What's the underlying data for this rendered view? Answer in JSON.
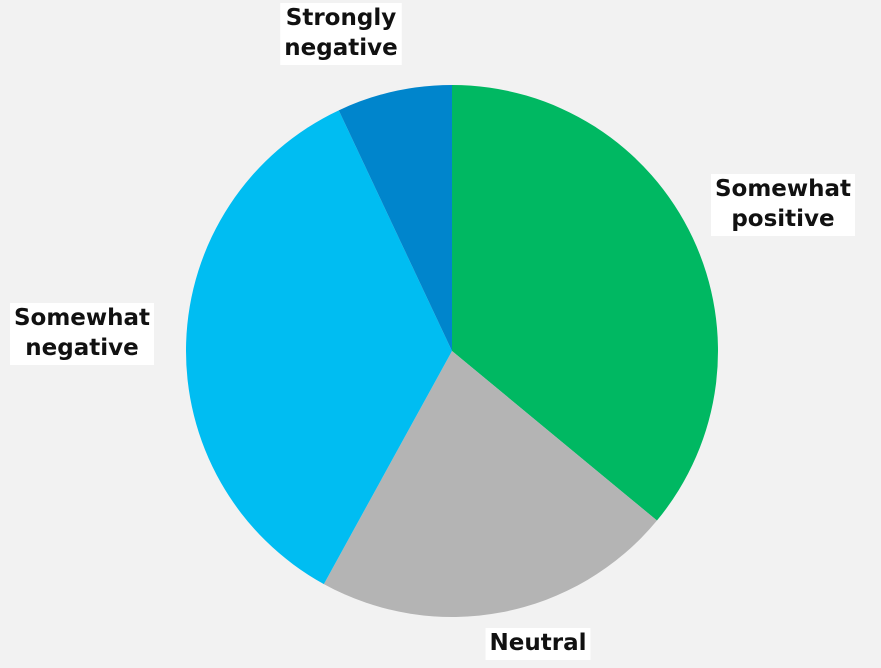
{
  "chart_data": {
    "type": "pie",
    "title": "",
    "slices": [
      {
        "label": "Somewhat positive",
        "value": 36,
        "color": "#00b862"
      },
      {
        "label": "Neutral",
        "value": 22,
        "color": "#b4b4b4"
      },
      {
        "label": "Somewhat negative",
        "value": 35,
        "color": "#00bdf2"
      },
      {
        "label": "Strongly negative",
        "value": 7,
        "color": "#0085cc"
      }
    ],
    "start": "top",
    "direction": "clockwise",
    "legend": "none"
  }
}
